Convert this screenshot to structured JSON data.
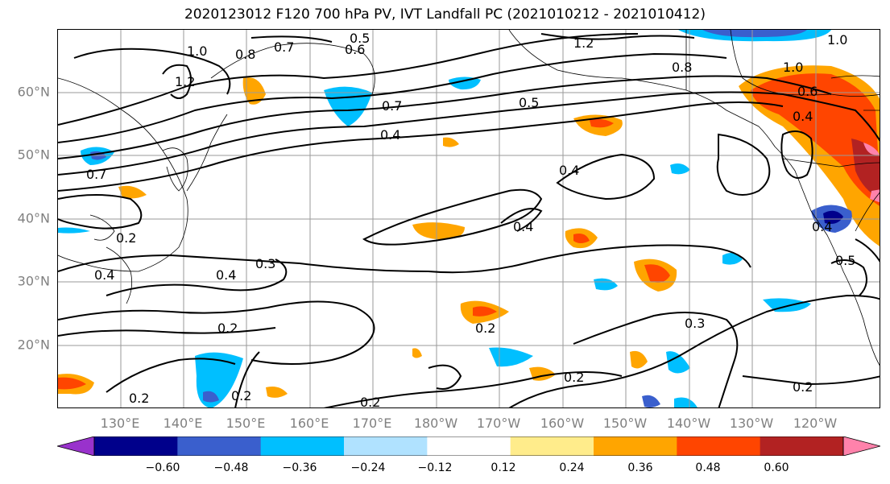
{
  "title": "2020123012 F120 700 hPa PV, IVT Landfall PC (2021010212 - 2021010412)",
  "lat_labels": [
    "60°N",
    "50°N",
    "40°N",
    "30°N",
    "20°N"
  ],
  "lon_labels": [
    "130°E",
    "140°E",
    "150°E",
    "160°E",
    "170°E",
    "180°W",
    "170°W",
    "160°W",
    "150°W",
    "140°W",
    "130°W",
    "120°W"
  ],
  "colorbar": {
    "colors": [
      "#9932cc",
      "#00008b",
      "#3a5fcd",
      "#00bfff",
      "#b0e2ff",
      "#ffffff",
      "#ffec8b",
      "#ffa500",
      "#ff4500",
      "#b22222",
      "#ff82ab"
    ],
    "tick_labels": [
      "−0.60",
      "−0.48",
      "−0.36",
      "−0.24",
      "−0.12",
      "0.12",
      "0.24",
      "0.36",
      "0.48",
      "0.60"
    ]
  },
  "contour_labels": [
    "0.5",
    "0.7",
    "0.6",
    "1.2",
    "1.0",
    "0.8",
    "1.0",
    "1.2",
    "0.8",
    "1.0",
    "0.6",
    "0.4",
    "0.7",
    "0.5",
    "0.4",
    "0.4",
    "0.4",
    "0.7",
    "0.2",
    "0.3",
    "0.4",
    "0.2",
    "0.2",
    "0.2",
    "0.2",
    "0.3",
    "0.2",
    "0.2",
    "0.4",
    "0.5",
    "0.2",
    "0.4"
  ]
}
